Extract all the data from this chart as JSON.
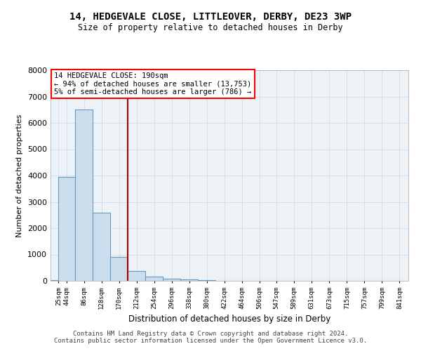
{
  "title": "14, HEDGEVALE CLOSE, LITTLEOVER, DERBY, DE23 3WP",
  "subtitle": "Size of property relative to detached houses in Derby",
  "xlabel": "Distribution of detached houses by size in Derby",
  "ylabel": "Number of detached properties",
  "bar_color": "#ccdded",
  "bar_edge_color": "#6699bb",
  "grid_color": "#c8d8e8",
  "background_color": "#edf2f7",
  "annotation_text": "14 HEDGEVALE CLOSE: 190sqm\n← 94% of detached houses are smaller (13,753)\n5% of semi-detached houses are larger (786) →",
  "vline_x": 190,
  "vline_color": "#aa0000",
  "ylim": [
    0,
    8000
  ],
  "xtick_labels": [
    "2sqm",
    "4sqm",
    "6sqm",
    "8sqm",
    "0sqm",
    "2sqm",
    "4sqm",
    "6sqm",
    "8sqm",
    "0sqm",
    "2sqm",
    "4sqm",
    "6sqm",
    "7sqm",
    "9sqm",
    "1sqm",
    "3sqm",
    "5sqm",
    "7sqm",
    "9sqm",
    "1sqm"
  ],
  "xtick_labels_full": [
    "25sqm",
    "44sqm",
    "86sqm",
    "128sqm",
    "170sqm",
    "212sqm",
    "254sqm",
    "296sqm",
    "338sqm",
    "380sqm",
    "422sqm",
    "464sqm",
    "506sqm",
    "547sqm",
    "589sqm",
    "631sqm",
    "673sqm",
    "715sqm",
    "757sqm",
    "799sqm",
    "841sqm"
  ],
  "bin_lefts": [
    6,
    25,
    65,
    107,
    149,
    191,
    233,
    275,
    317,
    359,
    401,
    443,
    485,
    527,
    568,
    610,
    652,
    694,
    736,
    778,
    820
  ],
  "bin_rights": [
    25,
    65,
    107,
    149,
    191,
    233,
    275,
    317,
    359,
    401,
    443,
    485,
    527,
    568,
    610,
    652,
    694,
    736,
    778,
    820,
    862
  ],
  "bar_heights": [
    30,
    3950,
    6500,
    2600,
    900,
    380,
    160,
    90,
    50,
    25,
    12,
    5,
    3,
    2,
    1,
    1,
    1,
    0,
    0,
    0,
    0
  ],
  "footnote": "Contains HM Land Registry data © Crown copyright and database right 2024.\nContains public sector information licensed under the Open Government Licence v3.0."
}
